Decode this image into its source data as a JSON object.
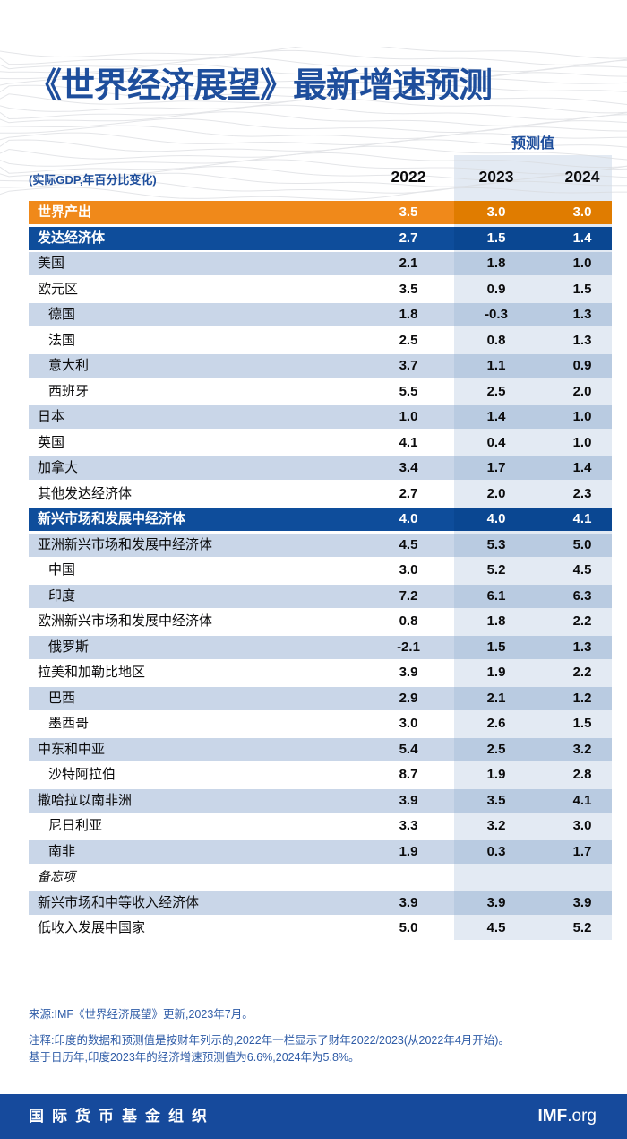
{
  "chart_data": {
    "type": "table",
    "title": "《世界经济展望》最新增速预测",
    "forecast_label": "预测值",
    "unit_label": "(实际GDP,年百分比变化)",
    "columns": [
      "2022",
      "2023",
      "2024"
    ],
    "forecast_columns": [
      "2023",
      "2024"
    ],
    "rows": [
      {
        "label": "世界产出",
        "style": "world",
        "indent": 0,
        "values": [
          "3.5",
          "3.0",
          "3.0"
        ]
      },
      {
        "label": "发达经济体",
        "style": "group",
        "indent": 0,
        "values": [
          "2.7",
          "1.5",
          "1.4"
        ]
      },
      {
        "label": "美国",
        "style": "light",
        "indent": 0,
        "values": [
          "2.1",
          "1.8",
          "1.0"
        ]
      },
      {
        "label": "欧元区",
        "style": "white",
        "indent": 0,
        "values": [
          "3.5",
          "0.9",
          "1.5"
        ]
      },
      {
        "label": "德国",
        "style": "light",
        "indent": 1,
        "values": [
          "1.8",
          "-0.3",
          "1.3"
        ]
      },
      {
        "label": "法国",
        "style": "white",
        "indent": 1,
        "values": [
          "2.5",
          "0.8",
          "1.3"
        ]
      },
      {
        "label": "意大利",
        "style": "light",
        "indent": 1,
        "values": [
          "3.7",
          "1.1",
          "0.9"
        ]
      },
      {
        "label": "西班牙",
        "style": "white",
        "indent": 1,
        "values": [
          "5.5",
          "2.5",
          "2.0"
        ]
      },
      {
        "label": "日本",
        "style": "light",
        "indent": 0,
        "values": [
          "1.0",
          "1.4",
          "1.0"
        ]
      },
      {
        "label": "英国",
        "style": "white",
        "indent": 0,
        "values": [
          "4.1",
          "0.4",
          "1.0"
        ]
      },
      {
        "label": "加拿大",
        "style": "light",
        "indent": 0,
        "values": [
          "3.4",
          "1.7",
          "1.4"
        ]
      },
      {
        "label": "其他发达经济体",
        "style": "white",
        "indent": 0,
        "values": [
          "2.7",
          "2.0",
          "2.3"
        ]
      },
      {
        "label": "新兴市场和发展中经济体",
        "style": "group",
        "indent": 0,
        "values": [
          "4.0",
          "4.0",
          "4.1"
        ]
      },
      {
        "label": "亚洲新兴市场和发展中经济体",
        "style": "light",
        "indent": 0,
        "values": [
          "4.5",
          "5.3",
          "5.0"
        ]
      },
      {
        "label": "中国",
        "style": "white",
        "indent": 1,
        "values": [
          "3.0",
          "5.2",
          "4.5"
        ]
      },
      {
        "label": "印度",
        "style": "light",
        "indent": 1,
        "values": [
          "7.2",
          "6.1",
          "6.3"
        ]
      },
      {
        "label": "欧洲新兴市场和发展中经济体",
        "style": "white",
        "indent": 0,
        "values": [
          "0.8",
          "1.8",
          "2.2"
        ]
      },
      {
        "label": "俄罗斯",
        "style": "light",
        "indent": 1,
        "values": [
          "-2.1",
          "1.5",
          "1.3"
        ]
      },
      {
        "label": "拉美和加勒比地区",
        "style": "white",
        "indent": 0,
        "values": [
          "3.9",
          "1.9",
          "2.2"
        ]
      },
      {
        "label": "巴西",
        "style": "light",
        "indent": 1,
        "values": [
          "2.9",
          "2.1",
          "1.2"
        ]
      },
      {
        "label": "墨西哥",
        "style": "white",
        "indent": 1,
        "values": [
          "3.0",
          "2.6",
          "1.5"
        ]
      },
      {
        "label": "中东和中亚",
        "style": "light",
        "indent": 0,
        "values": [
          "5.4",
          "2.5",
          "3.2"
        ]
      },
      {
        "label": "沙特阿拉伯",
        "style": "white",
        "indent": 1,
        "values": [
          "8.7",
          "1.9",
          "2.8"
        ]
      },
      {
        "label": "撒哈拉以南非洲",
        "style": "light",
        "indent": 0,
        "values": [
          "3.9",
          "3.5",
          "4.1"
        ]
      },
      {
        "label": "尼日利亚",
        "style": "white",
        "indent": 1,
        "values": [
          "3.3",
          "3.2",
          "3.0"
        ]
      },
      {
        "label": "南非",
        "style": "light",
        "indent": 1,
        "values": [
          "1.9",
          "0.3",
          "1.7"
        ]
      },
      {
        "label": "备忘项",
        "style": "memo",
        "indent": 0,
        "values": [
          "",
          "",
          ""
        ]
      },
      {
        "label": "新兴市场和中等收入经济体",
        "style": "light",
        "indent": 0,
        "values": [
          "3.9",
          "3.9",
          "3.9"
        ]
      },
      {
        "label": "低收入发展中国家",
        "style": "white",
        "indent": 0,
        "values": [
          "5.0",
          "4.5",
          "5.2"
        ]
      }
    ]
  },
  "notes": {
    "source": "来源:IMF《世界经济展望》更新,2023年7月。",
    "note_line1": "注释:印度的数据和预测值是按财年列示的,2022年一栏显示了财年2022/2023(从2022年4月开始)。",
    "note_line2": "基于日历年,印度2023年的经济增速预测值为6.6%,2024年为5.8%。"
  },
  "footer": {
    "org": "国际货币基金组织",
    "site_bold": "IMF",
    "site_rest": ".org"
  },
  "colors": {
    "orange": "#F0891A",
    "orange_forecast": "#E07C00",
    "blue_row": "#0E4D9B",
    "blue_row_forecast": "#0A4792",
    "stripe": "#C9D6E8",
    "stripe_forecast": "#B9CBE1",
    "forecast_band": "#E3EAF3",
    "title_blue": "#1E4E9C",
    "note_blue": "#2F5CA7",
    "footer_blue": "#164A9C"
  }
}
